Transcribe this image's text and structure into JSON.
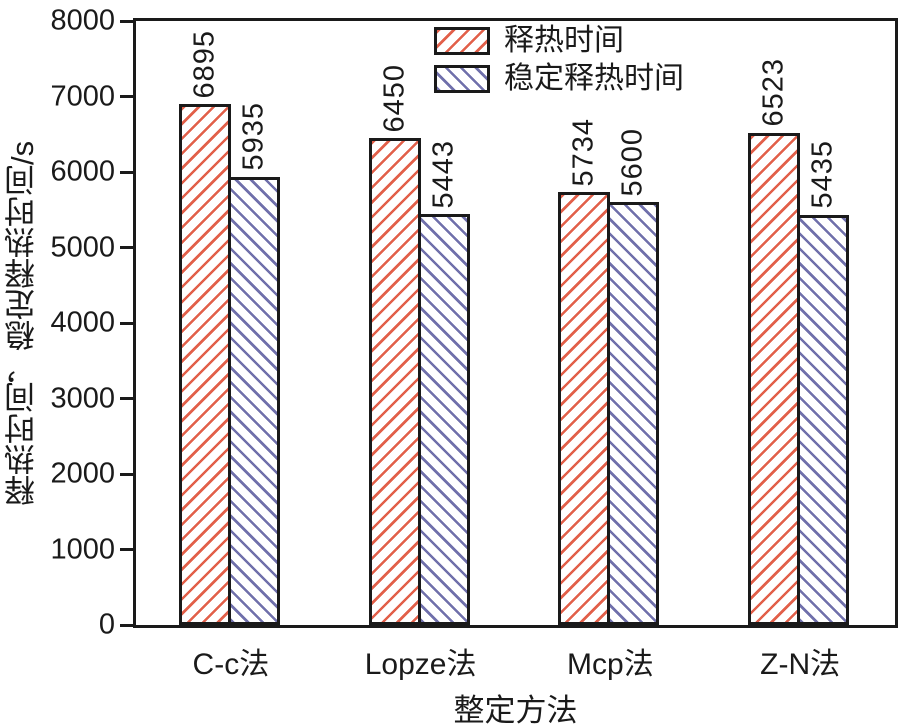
{
  "chart_data": {
    "type": "bar",
    "title": "",
    "categories": [
      "C-c法",
      "Lopze法",
      "Mcp法",
      "Z-N法"
    ],
    "series": [
      {
        "name": "释热时间",
        "color": "#e2604a",
        "hatch": "///",
        "values": [
          6895,
          6450,
          5734,
          6523
        ]
      },
      {
        "name": "稳定释热时间",
        "color": "#7070ab",
        "hatch": "\\\\\\",
        "values": [
          5935,
          5443,
          5600,
          5435
        ]
      }
    ],
    "xlabel": "整定方法",
    "ylabel": "释热时间，稳定释热时间/s",
    "ylim": [
      0,
      8000
    ],
    "ytick_step": 1000,
    "yticks": [
      0,
      1000,
      2000,
      3000,
      4000,
      5000,
      6000,
      7000,
      8000
    ],
    "bar_value_labels": true,
    "grid": false,
    "legend_position": "top-center",
    "frame_color": "#1a1a1a",
    "plot_background": "#ffffff"
  }
}
